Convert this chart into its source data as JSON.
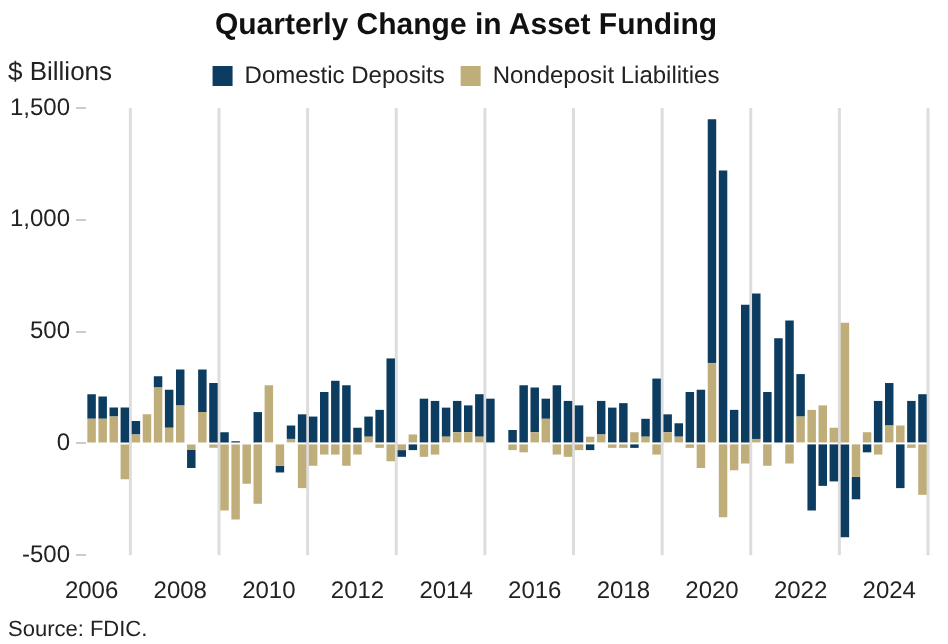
{
  "chart_data": {
    "type": "bar",
    "title": "Quarterly Change in Asset Funding",
    "ylabel": "$ Billions",
    "categories": [
      "2006",
      null,
      null,
      null,
      null,
      null,
      null,
      null,
      "2008",
      null,
      null,
      null,
      null,
      null,
      null,
      null,
      "2010",
      null,
      null,
      null,
      null,
      null,
      null,
      null,
      "2012",
      null,
      null,
      null,
      null,
      null,
      null,
      null,
      "2014",
      null,
      null,
      null,
      null,
      null,
      null,
      null,
      "2016",
      null,
      null,
      null,
      null,
      null,
      null,
      null,
      "2018",
      null,
      null,
      null,
      null,
      null,
      null,
      null,
      "2020",
      null,
      null,
      null,
      null,
      null,
      null,
      null,
      "2022",
      null,
      null,
      null,
      null,
      null,
      null,
      null,
      "2024",
      null,
      null,
      null
    ],
    "stacked": true,
    "series": [
      {
        "name": "Nondeposit Liabilities",
        "color": "#bfad7a",
        "values": [
          110,
          110,
          120,
          -160,
          40,
          130,
          250,
          70,
          170,
          -30,
          140,
          -20,
          -300,
          -340,
          -180,
          -270,
          260,
          -100,
          20,
          -200,
          -100,
          -50,
          -50,
          -100,
          -50,
          30,
          -20,
          -80,
          -30,
          40,
          -60,
          -50,
          30,
          50,
          50,
          30,
          0,
          0,
          -30,
          -40,
          50,
          110,
          -50,
          -60,
          -30,
          30,
          40,
          -20,
          -20,
          50,
          30,
          -50,
          50,
          30,
          -20,
          -110,
          360,
          -330,
          -120,
          -90,
          20,
          -100,
          0,
          -90,
          120,
          150,
          170,
          70,
          540,
          -150,
          50,
          -50,
          80,
          80,
          -20,
          -230
        ]
      },
      {
        "name": "Domestic Deposits",
        "color": "#0c3c60",
        "values": [
          110,
          100,
          40,
          160,
          60,
          0,
          50,
          170,
          160,
          -80,
          190,
          270,
          50,
          10,
          0,
          140,
          0,
          -30,
          60,
          130,
          120,
          230,
          280,
          260,
          70,
          90,
          150,
          380,
          -30,
          -30,
          200,
          190,
          130,
          140,
          120,
          190,
          200,
          0,
          60,
          260,
          200,
          90,
          260,
          190,
          170,
          -30,
          150,
          160,
          180,
          -20,
          80,
          290,
          80,
          60,
          230,
          240,
          1090,
          1220,
          150,
          620,
          650,
          230,
          470,
          550,
          190,
          -300,
          -190,
          -170,
          -420,
          -100,
          -40,
          190,
          190,
          -200,
          190,
          220
        ]
      }
    ],
    "ylim": [
      -500,
      1500
    ],
    "yticks": [
      -500,
      0,
      500,
      {
        "value": 1000,
        "label": "1,000"
      },
      {
        "value": 1500,
        "label": "1,500"
      }
    ],
    "grid": "x",
    "legend": "top",
    "annotations": [
      "Source: FDIC."
    ]
  }
}
